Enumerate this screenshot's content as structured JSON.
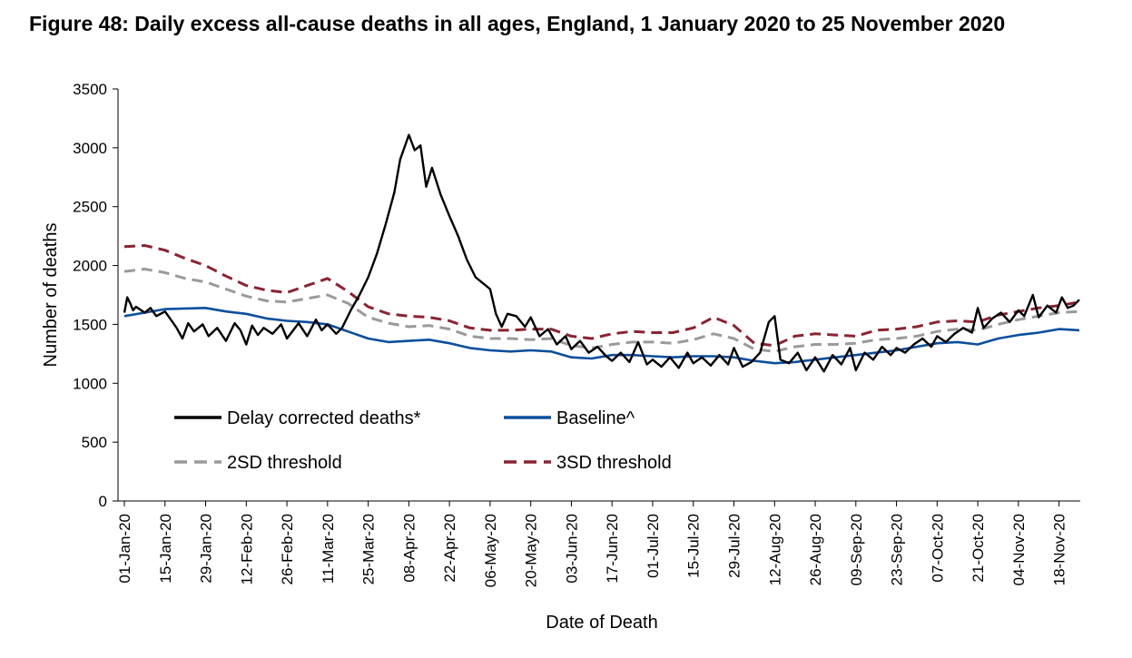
{
  "chart_data": {
    "type": "line",
    "title": "Figure 48: Daily excess all-cause deaths in all ages, England, 1 January 2020 to 25 November 2020",
    "xlabel": "Date of Death",
    "ylabel": "Number of deaths",
    "ylim": [
      0,
      3500
    ],
    "yticks": [
      0,
      500,
      1000,
      1500,
      2000,
      2500,
      3000,
      3500
    ],
    "x_start": "2020-01-01",
    "x_end": "2020-11-25",
    "xtick_labels": [
      "01-Jan-20",
      "15-Jan-20",
      "29-Jan-20",
      "12-Feb-20",
      "26-Feb-20",
      "11-Mar-20",
      "25-Mar-20",
      "08-Apr-20",
      "22-Apr-20",
      "06-May-20",
      "20-May-20",
      "03-Jun-20",
      "17-Jun-20",
      "01-Jul-20",
      "15-Jul-20",
      "29-Jul-20",
      "12-Aug-20",
      "26-Aug-20",
      "09-Sep-20",
      "23-Sep-20",
      "07-Oct-20",
      "21-Oct-20",
      "04-Nov-20",
      "18-Nov-20"
    ],
    "grid": false,
    "legend": "inside-bottom-left",
    "series": [
      {
        "name": "Delay corrected deaths*",
        "color": "#000000",
        "style": "solid",
        "points": [
          [
            "2020-01-01",
            1600
          ],
          [
            "2020-01-02",
            1730
          ],
          [
            "2020-01-03",
            1680
          ],
          [
            "2020-01-04",
            1620
          ],
          [
            "2020-01-05",
            1650
          ],
          [
            "2020-01-08",
            1600
          ],
          [
            "2020-01-10",
            1640
          ],
          [
            "2020-01-12",
            1570
          ],
          [
            "2020-01-15",
            1610
          ],
          [
            "2020-01-17",
            1540
          ],
          [
            "2020-01-19",
            1470
          ],
          [
            "2020-01-21",
            1380
          ],
          [
            "2020-01-23",
            1510
          ],
          [
            "2020-01-25",
            1440
          ],
          [
            "2020-01-28",
            1500
          ],
          [
            "2020-01-30",
            1400
          ],
          [
            "2020-02-02",
            1470
          ],
          [
            "2020-02-05",
            1360
          ],
          [
            "2020-02-08",
            1510
          ],
          [
            "2020-02-10",
            1450
          ],
          [
            "2020-02-12",
            1330
          ],
          [
            "2020-02-14",
            1490
          ],
          [
            "2020-02-16",
            1410
          ],
          [
            "2020-02-18",
            1470
          ],
          [
            "2020-02-21",
            1420
          ],
          [
            "2020-02-24",
            1500
          ],
          [
            "2020-02-26",
            1380
          ],
          [
            "2020-03-01",
            1510
          ],
          [
            "2020-03-04",
            1400
          ],
          [
            "2020-03-07",
            1540
          ],
          [
            "2020-03-09",
            1450
          ],
          [
            "2020-03-11",
            1500
          ],
          [
            "2020-03-14",
            1420
          ],
          [
            "2020-03-16",
            1470
          ],
          [
            "2020-03-19",
            1620
          ],
          [
            "2020-03-22",
            1750
          ],
          [
            "2020-03-25",
            1900
          ],
          [
            "2020-03-28",
            2100
          ],
          [
            "2020-03-31",
            2350
          ],
          [
            "2020-04-03",
            2620
          ],
          [
            "2020-04-05",
            2900
          ],
          [
            "2020-04-08",
            3110
          ],
          [
            "2020-04-10",
            2980
          ],
          [
            "2020-04-12",
            3020
          ],
          [
            "2020-04-14",
            2670
          ],
          [
            "2020-04-16",
            2830
          ],
          [
            "2020-04-19",
            2600
          ],
          [
            "2020-04-22",
            2420
          ],
          [
            "2020-04-25",
            2250
          ],
          [
            "2020-04-28",
            2050
          ],
          [
            "2020-05-01",
            1900
          ],
          [
            "2020-05-04",
            1840
          ],
          [
            "2020-05-06",
            1800
          ],
          [
            "2020-05-08",
            1590
          ],
          [
            "2020-05-10",
            1480
          ],
          [
            "2020-05-12",
            1590
          ],
          [
            "2020-05-15",
            1570
          ],
          [
            "2020-05-18",
            1480
          ],
          [
            "2020-05-20",
            1560
          ],
          [
            "2020-05-23",
            1400
          ],
          [
            "2020-05-26",
            1460
          ],
          [
            "2020-05-29",
            1330
          ],
          [
            "2020-06-01",
            1400
          ],
          [
            "2020-06-03",
            1290
          ],
          [
            "2020-06-06",
            1360
          ],
          [
            "2020-06-09",
            1260
          ],
          [
            "2020-06-12",
            1310
          ],
          [
            "2020-06-15",
            1230
          ],
          [
            "2020-06-17",
            1190
          ],
          [
            "2020-06-20",
            1260
          ],
          [
            "2020-06-23",
            1180
          ],
          [
            "2020-06-26",
            1350
          ],
          [
            "2020-06-29",
            1160
          ],
          [
            "2020-07-01",
            1200
          ],
          [
            "2020-07-04",
            1140
          ],
          [
            "2020-07-07",
            1220
          ],
          [
            "2020-07-10",
            1130
          ],
          [
            "2020-07-13",
            1260
          ],
          [
            "2020-07-15",
            1170
          ],
          [
            "2020-07-18",
            1220
          ],
          [
            "2020-07-21",
            1150
          ],
          [
            "2020-07-24",
            1240
          ],
          [
            "2020-07-27",
            1160
          ],
          [
            "2020-07-29",
            1300
          ],
          [
            "2020-08-01",
            1140
          ],
          [
            "2020-08-04",
            1180
          ],
          [
            "2020-08-07",
            1260
          ],
          [
            "2020-08-10",
            1520
          ],
          [
            "2020-08-12",
            1570
          ],
          [
            "2020-08-14",
            1200
          ],
          [
            "2020-08-17",
            1170
          ],
          [
            "2020-08-20",
            1260
          ],
          [
            "2020-08-23",
            1110
          ],
          [
            "2020-08-26",
            1220
          ],
          [
            "2020-08-29",
            1100
          ],
          [
            "2020-09-01",
            1240
          ],
          [
            "2020-09-04",
            1160
          ],
          [
            "2020-09-07",
            1300
          ],
          [
            "2020-09-09",
            1110
          ],
          [
            "2020-09-12",
            1260
          ],
          [
            "2020-09-15",
            1200
          ],
          [
            "2020-09-18",
            1310
          ],
          [
            "2020-09-21",
            1240
          ],
          [
            "2020-09-23",
            1300
          ],
          [
            "2020-09-26",
            1260
          ],
          [
            "2020-09-29",
            1330
          ],
          [
            "2020-10-02",
            1380
          ],
          [
            "2020-10-05",
            1310
          ],
          [
            "2020-10-07",
            1400
          ],
          [
            "2020-10-10",
            1350
          ],
          [
            "2020-10-13",
            1420
          ],
          [
            "2020-10-16",
            1470
          ],
          [
            "2020-10-19",
            1430
          ],
          [
            "2020-10-21",
            1640
          ],
          [
            "2020-10-23",
            1470
          ],
          [
            "2020-10-26",
            1550
          ],
          [
            "2020-10-29",
            1600
          ],
          [
            "2020-11-01",
            1520
          ],
          [
            "2020-11-04",
            1620
          ],
          [
            "2020-11-06",
            1570
          ],
          [
            "2020-11-09",
            1750
          ],
          [
            "2020-11-11",
            1560
          ],
          [
            "2020-11-14",
            1660
          ],
          [
            "2020-11-17",
            1600
          ],
          [
            "2020-11-19",
            1730
          ],
          [
            "2020-11-21",
            1640
          ],
          [
            "2020-11-23",
            1660
          ],
          [
            "2020-11-25",
            1710
          ]
        ]
      },
      {
        "name": "Baseline^",
        "color": "#0b4f9c",
        "style": "solid",
        "points": [
          [
            "2020-01-01",
            1570
          ],
          [
            "2020-01-08",
            1600
          ],
          [
            "2020-01-15",
            1630
          ],
          [
            "2020-01-29",
            1640
          ],
          [
            "2020-02-05",
            1610
          ],
          [
            "2020-02-12",
            1590
          ],
          [
            "2020-02-19",
            1550
          ],
          [
            "2020-02-26",
            1530
          ],
          [
            "2020-03-04",
            1520
          ],
          [
            "2020-03-11",
            1500
          ],
          [
            "2020-03-18",
            1440
          ],
          [
            "2020-03-25",
            1380
          ],
          [
            "2020-04-01",
            1350
          ],
          [
            "2020-04-08",
            1360
          ],
          [
            "2020-04-15",
            1370
          ],
          [
            "2020-04-22",
            1340
          ],
          [
            "2020-04-29",
            1300
          ],
          [
            "2020-05-06",
            1280
          ],
          [
            "2020-05-13",
            1270
          ],
          [
            "2020-05-20",
            1280
          ],
          [
            "2020-05-27",
            1270
          ],
          [
            "2020-06-03",
            1220
          ],
          [
            "2020-06-10",
            1210
          ],
          [
            "2020-06-17",
            1240
          ],
          [
            "2020-06-24",
            1240
          ],
          [
            "2020-07-01",
            1230
          ],
          [
            "2020-07-08",
            1220
          ],
          [
            "2020-07-15",
            1230
          ],
          [
            "2020-07-22",
            1230
          ],
          [
            "2020-07-29",
            1220
          ],
          [
            "2020-08-05",
            1190
          ],
          [
            "2020-08-12",
            1170
          ],
          [
            "2020-08-19",
            1180
          ],
          [
            "2020-08-26",
            1200
          ],
          [
            "2020-09-02",
            1220
          ],
          [
            "2020-09-09",
            1240
          ],
          [
            "2020-09-16",
            1260
          ],
          [
            "2020-09-23",
            1280
          ],
          [
            "2020-09-30",
            1310
          ],
          [
            "2020-10-07",
            1340
          ],
          [
            "2020-10-14",
            1350
          ],
          [
            "2020-10-21",
            1330
          ],
          [
            "2020-10-28",
            1380
          ],
          [
            "2020-11-04",
            1410
          ],
          [
            "2020-11-11",
            1430
          ],
          [
            "2020-11-18",
            1460
          ],
          [
            "2020-11-25",
            1450
          ]
        ]
      },
      {
        "name": "2SD threshold",
        "color": "#9a9a9a",
        "style": "dashed",
        "points": [
          [
            "2020-01-01",
            1950
          ],
          [
            "2020-01-08",
            1970
          ],
          [
            "2020-01-15",
            1940
          ],
          [
            "2020-01-22",
            1890
          ],
          [
            "2020-01-29",
            1860
          ],
          [
            "2020-02-05",
            1800
          ],
          [
            "2020-02-12",
            1740
          ],
          [
            "2020-02-19",
            1700
          ],
          [
            "2020-02-26",
            1690
          ],
          [
            "2020-03-04",
            1720
          ],
          [
            "2020-03-11",
            1750
          ],
          [
            "2020-03-18",
            1680
          ],
          [
            "2020-03-25",
            1560
          ],
          [
            "2020-04-01",
            1510
          ],
          [
            "2020-04-08",
            1480
          ],
          [
            "2020-04-15",
            1490
          ],
          [
            "2020-04-22",
            1460
          ],
          [
            "2020-04-29",
            1400
          ],
          [
            "2020-05-06",
            1380
          ],
          [
            "2020-05-13",
            1380
          ],
          [
            "2020-05-20",
            1370
          ],
          [
            "2020-05-27",
            1380
          ],
          [
            "2020-06-03",
            1320
          ],
          [
            "2020-06-10",
            1300
          ],
          [
            "2020-06-17",
            1330
          ],
          [
            "2020-06-24",
            1350
          ],
          [
            "2020-07-01",
            1350
          ],
          [
            "2020-07-08",
            1340
          ],
          [
            "2020-07-15",
            1370
          ],
          [
            "2020-07-22",
            1420
          ],
          [
            "2020-07-29",
            1380
          ],
          [
            "2020-08-05",
            1290
          ],
          [
            "2020-08-12",
            1270
          ],
          [
            "2020-08-19",
            1310
          ],
          [
            "2020-08-26",
            1330
          ],
          [
            "2020-09-02",
            1330
          ],
          [
            "2020-09-09",
            1340
          ],
          [
            "2020-09-16",
            1370
          ],
          [
            "2020-09-23",
            1380
          ],
          [
            "2020-09-30",
            1400
          ],
          [
            "2020-10-07",
            1440
          ],
          [
            "2020-10-14",
            1460
          ],
          [
            "2020-10-21",
            1450
          ],
          [
            "2020-10-28",
            1500
          ],
          [
            "2020-11-04",
            1540
          ],
          [
            "2020-11-11",
            1570
          ],
          [
            "2020-11-18",
            1600
          ],
          [
            "2020-11-25",
            1610
          ]
        ]
      },
      {
        "name": "3SD threshold",
        "color": "#8b2332",
        "style": "dashed",
        "points": [
          [
            "2020-01-01",
            2160
          ],
          [
            "2020-01-08",
            2170
          ],
          [
            "2020-01-15",
            2130
          ],
          [
            "2020-01-22",
            2060
          ],
          [
            "2020-01-29",
            2000
          ],
          [
            "2020-02-05",
            1910
          ],
          [
            "2020-02-12",
            1830
          ],
          [
            "2020-02-19",
            1790
          ],
          [
            "2020-02-26",
            1770
          ],
          [
            "2020-03-04",
            1830
          ],
          [
            "2020-03-11",
            1890
          ],
          [
            "2020-03-18",
            1780
          ],
          [
            "2020-03-25",
            1650
          ],
          [
            "2020-04-01",
            1590
          ],
          [
            "2020-04-08",
            1570
          ],
          [
            "2020-04-15",
            1560
          ],
          [
            "2020-04-22",
            1530
          ],
          [
            "2020-04-29",
            1470
          ],
          [
            "2020-05-06",
            1450
          ],
          [
            "2020-05-13",
            1450
          ],
          [
            "2020-05-20",
            1460
          ],
          [
            "2020-05-27",
            1460
          ],
          [
            "2020-06-03",
            1400
          ],
          [
            "2020-06-10",
            1380
          ],
          [
            "2020-06-17",
            1420
          ],
          [
            "2020-06-24",
            1440
          ],
          [
            "2020-07-01",
            1430
          ],
          [
            "2020-07-08",
            1430
          ],
          [
            "2020-07-15",
            1470
          ],
          [
            "2020-07-22",
            1560
          ],
          [
            "2020-07-29",
            1490
          ],
          [
            "2020-08-05",
            1340
          ],
          [
            "2020-08-12",
            1320
          ],
          [
            "2020-08-19",
            1400
          ],
          [
            "2020-08-26",
            1420
          ],
          [
            "2020-09-02",
            1410
          ],
          [
            "2020-09-09",
            1400
          ],
          [
            "2020-09-16",
            1450
          ],
          [
            "2020-09-23",
            1460
          ],
          [
            "2020-09-30",
            1480
          ],
          [
            "2020-10-07",
            1520
          ],
          [
            "2020-10-14",
            1530
          ],
          [
            "2020-10-21",
            1520
          ],
          [
            "2020-10-28",
            1580
          ],
          [
            "2020-11-04",
            1610
          ],
          [
            "2020-11-11",
            1640
          ],
          [
            "2020-11-18",
            1660
          ],
          [
            "2020-11-25",
            1690
          ]
        ]
      }
    ]
  }
}
